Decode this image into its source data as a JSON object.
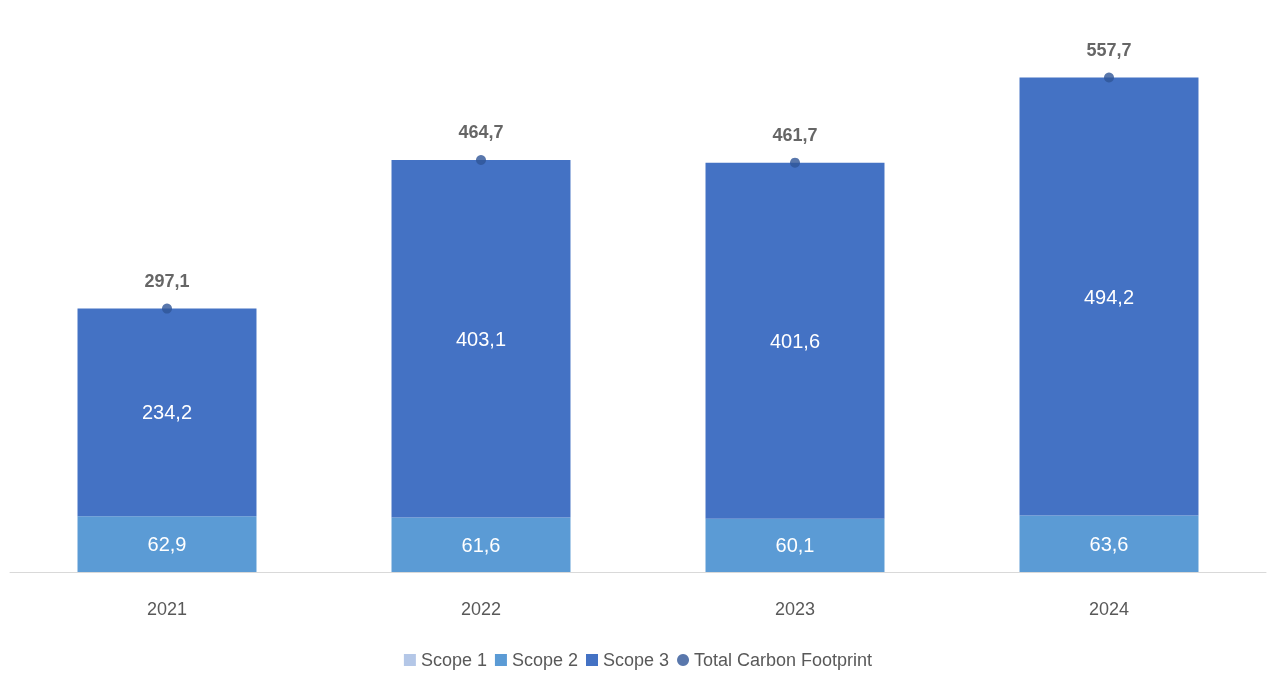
{
  "chart_data": {
    "type": "bar",
    "stacked": true,
    "categories": [
      "2021",
      "2022",
      "2023",
      "2024"
    ],
    "series": [
      {
        "name": "Scope 1",
        "color": "#b4c7e7",
        "values": [
          0,
          0,
          0,
          0
        ],
        "value_labels": [
          null,
          null,
          null,
          null
        ]
      },
      {
        "name": "Scope 2",
        "color": "#5b9bd5",
        "values": [
          62.9,
          61.6,
          60.1,
          63.6
        ],
        "value_labels": [
          "62,9",
          "61,6",
          "60,1",
          "63,6"
        ]
      },
      {
        "name": "Scope 3",
        "color": "#4472c4",
        "values": [
          234.2,
          403.1,
          401.6,
          494.2
        ],
        "value_labels": [
          "234,2",
          "403,1",
          "401,6",
          "494,2"
        ]
      },
      {
        "name": "Total Carbon Footprint",
        "type": "scatter",
        "color": "#2f5597",
        "values": [
          297.1,
          464.7,
          461.7,
          557.7
        ],
        "value_labels": [
          "297,1",
          "464,7",
          "461,7",
          "557,7"
        ],
        "marker": "circle"
      }
    ],
    "legend": "bottom",
    "grid": false
  }
}
